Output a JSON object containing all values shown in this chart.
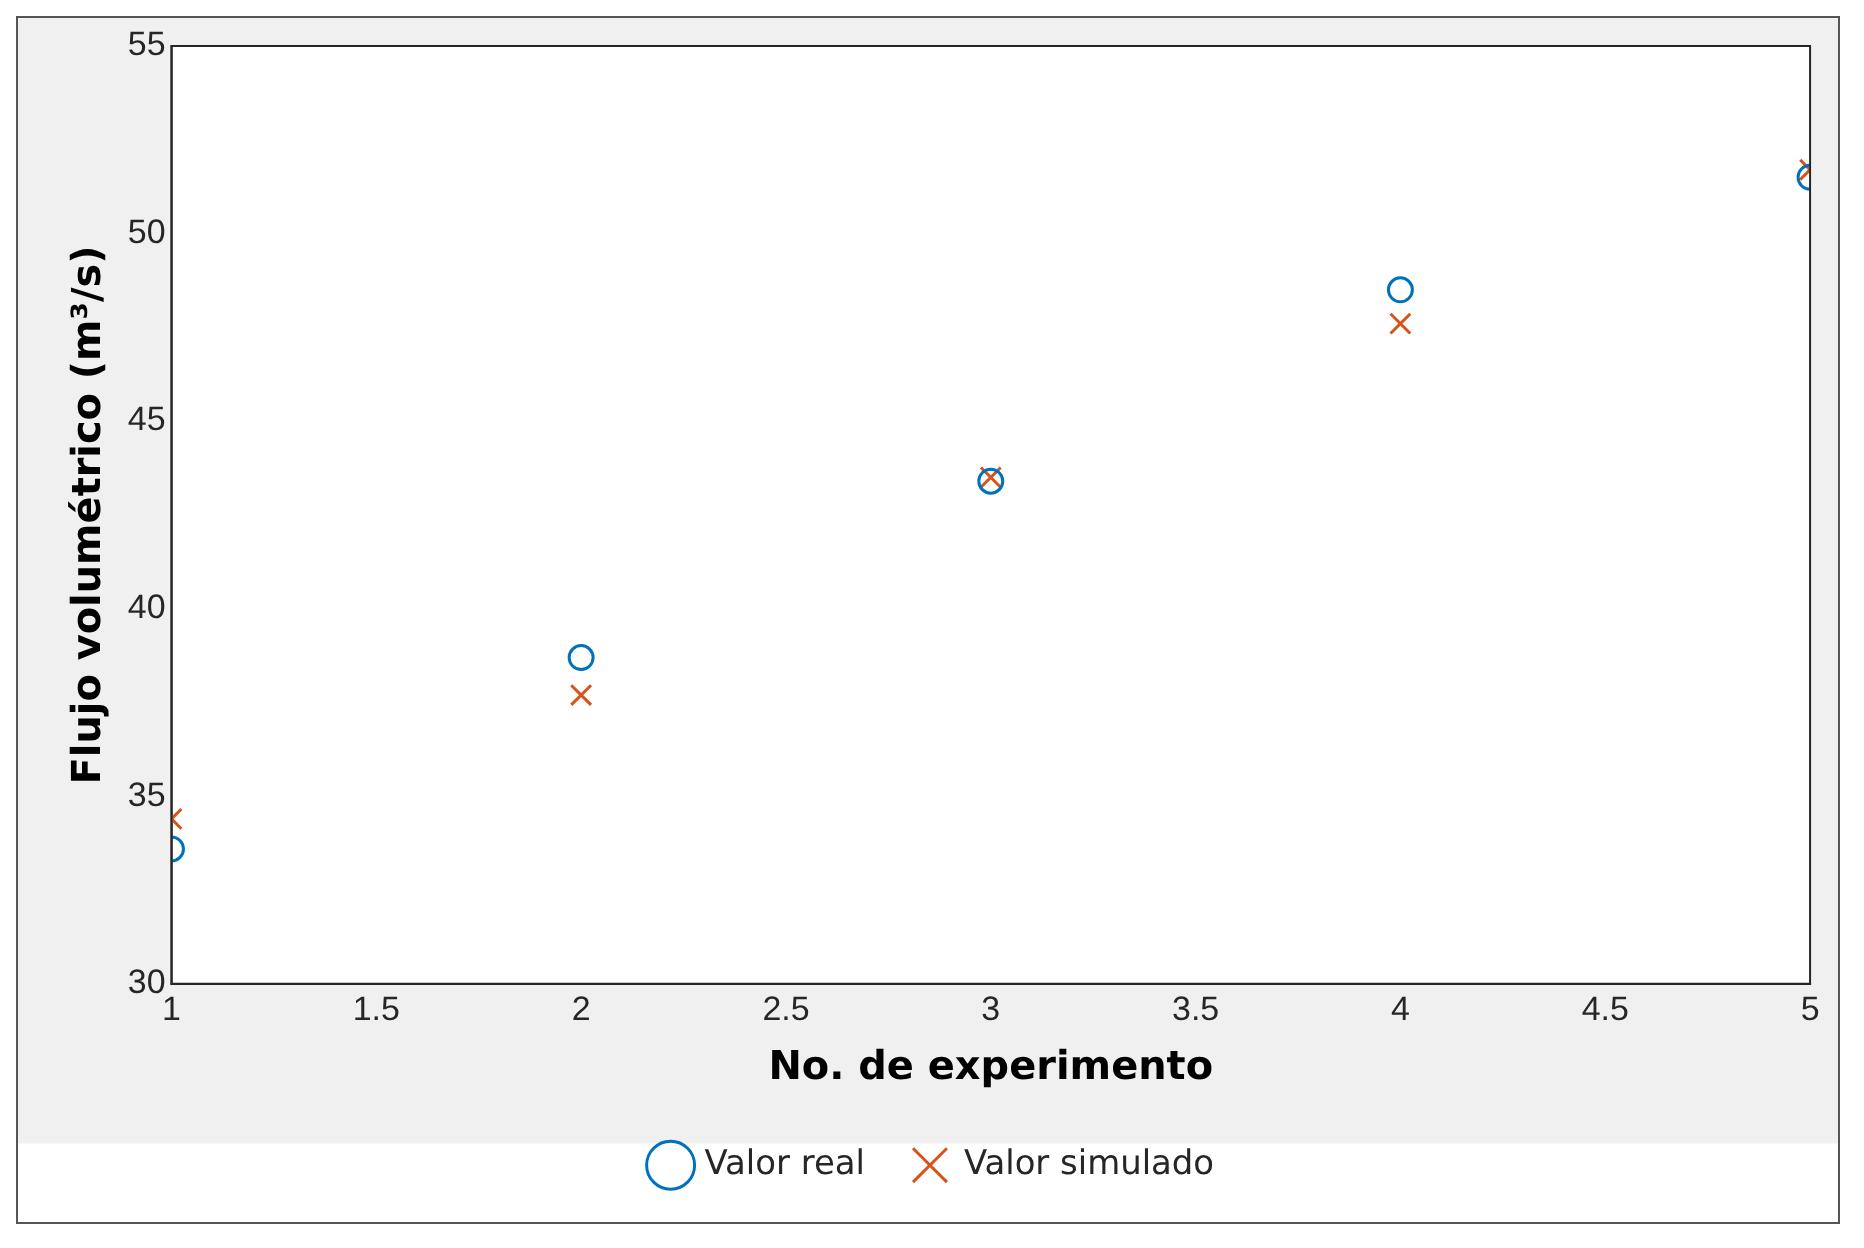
{
  "chart_data": {
    "type": "scatter",
    "xlabel": "No. de experimento",
    "ylabel": "Flujo volumétrico (m³/s)",
    "x": [
      1,
      2,
      3,
      4,
      5
    ],
    "series": [
      {
        "name": "Valor real",
        "color": "#0072bd",
        "marker": "circle",
        "values": [
          33.6,
          38.7,
          43.4,
          48.5,
          51.5
        ]
      },
      {
        "name": "Valor simulado",
        "color": "#d95319",
        "marker": "cross",
        "values": [
          34.4,
          37.7,
          43.5,
          47.6,
          51.7
        ]
      }
    ],
    "xlim": [
      1,
      5
    ],
    "xticks": [
      1,
      1.5,
      2,
      2.5,
      3,
      3.5,
      4,
      4.5,
      5
    ],
    "ylim": [
      30,
      55
    ],
    "yticks": [
      30,
      35,
      40,
      45,
      50,
      55
    ],
    "grid": false,
    "legend": "bottom"
  }
}
